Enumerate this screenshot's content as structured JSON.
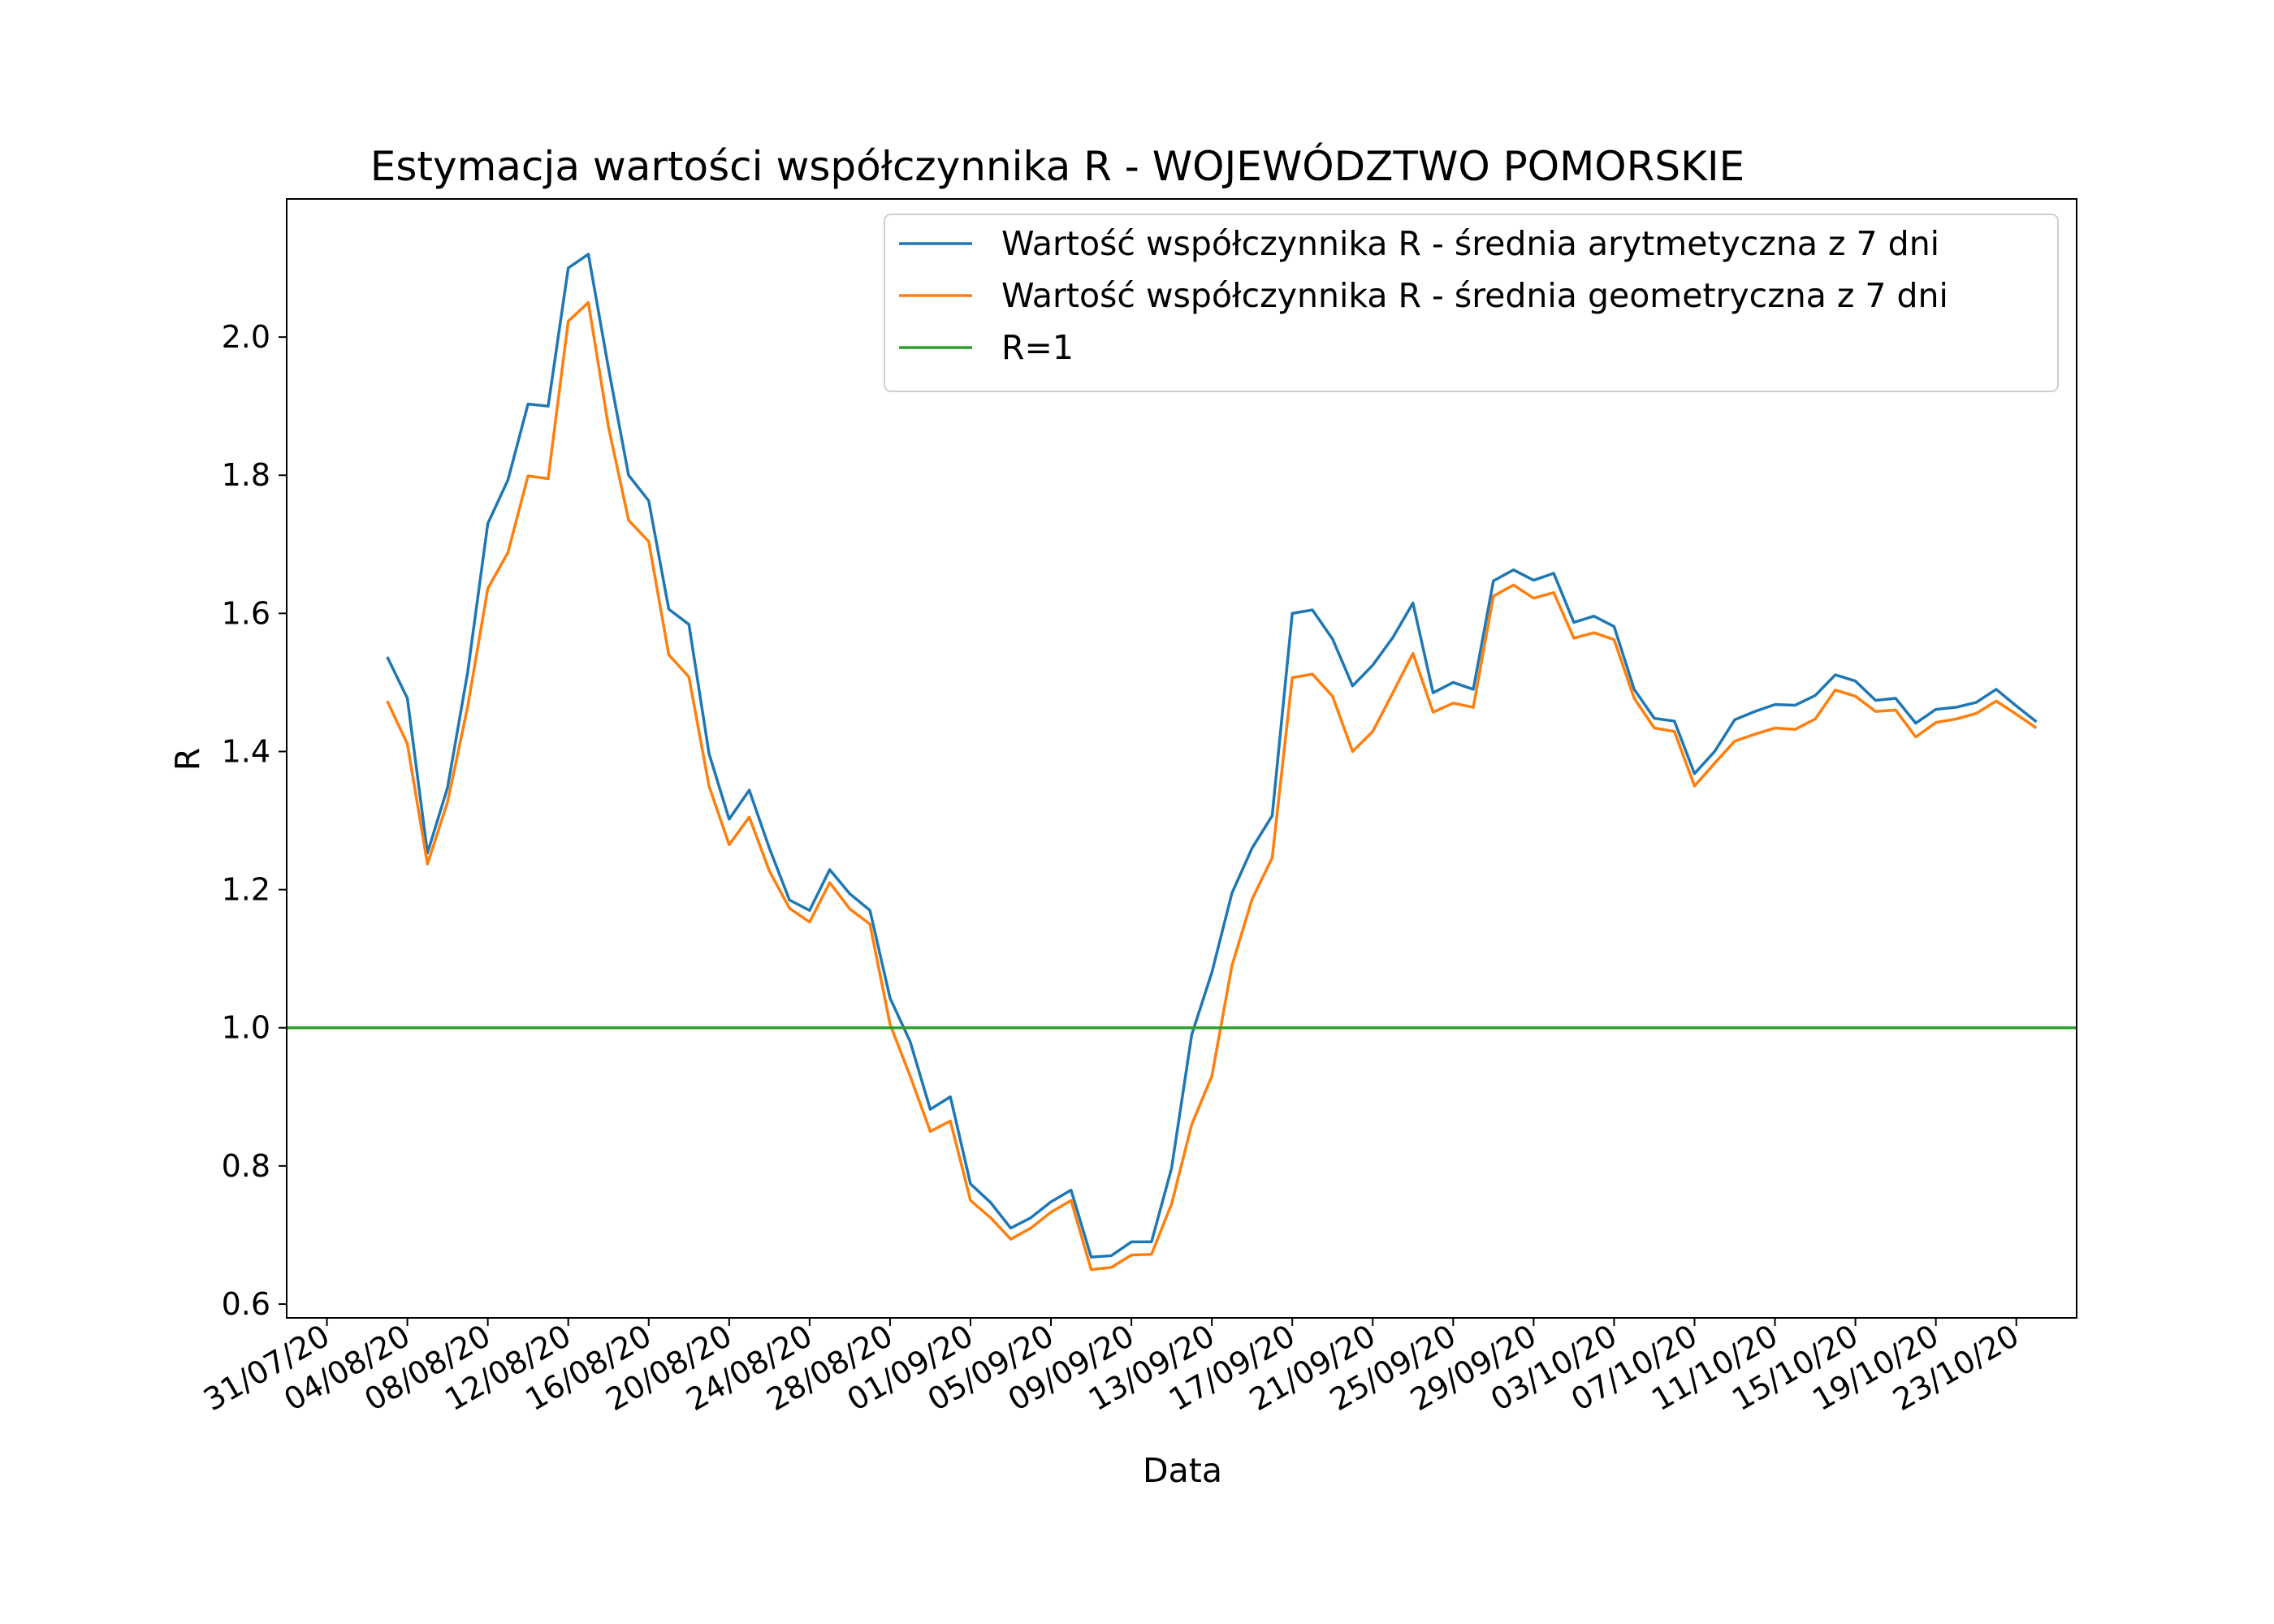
{
  "chart_data": {
    "type": "line",
    "title": "Estymacja wartości współczynnika R - WOJEWÓDZTWO POMORSKIE",
    "xlabel": "Data",
    "ylabel": "R",
    "x_start": "2020-08-03",
    "xlim": [
      "2020-07-29",
      "2020-10-26"
    ],
    "ylim": [
      0.58,
      2.2
    ],
    "yticks": [
      0.6,
      0.8,
      1.0,
      1.2,
      1.4,
      1.6,
      1.8,
      2.0
    ],
    "xticks": [
      "31/07/20",
      "04/08/20",
      "08/08/20",
      "12/08/20",
      "16/08/20",
      "20/08/20",
      "24/08/20",
      "28/08/20",
      "01/09/20",
      "05/09/20",
      "09/09/20",
      "13/09/20",
      "17/09/20",
      "21/09/20",
      "25/09/20",
      "29/09/20",
      "03/10/20",
      "07/10/20",
      "11/10/20",
      "15/10/20",
      "19/10/20",
      "23/10/20"
    ],
    "xtick_dates": [
      "2020-07-31",
      "2020-08-04",
      "2020-08-08",
      "2020-08-12",
      "2020-08-16",
      "2020-08-20",
      "2020-08-24",
      "2020-08-28",
      "2020-09-01",
      "2020-09-05",
      "2020-09-09",
      "2020-09-13",
      "2020-09-17",
      "2020-09-21",
      "2020-09-25",
      "2020-09-29",
      "2020-10-03",
      "2020-10-07",
      "2020-10-11",
      "2020-10-15",
      "2020-10-19",
      "2020-10-23"
    ],
    "grid": false,
    "legend_position": "top-right",
    "series": [
      {
        "name": "Wartość współczynnika R - średnia arytmetyczna z 7 dni",
        "color": "#1f77b4",
        "values": [
          1.537,
          1.477,
          1.253,
          1.348,
          1.515,
          1.73,
          1.793,
          1.903,
          1.9,
          2.1,
          2.12,
          1.955,
          1.8,
          1.763,
          1.606,
          1.584,
          1.397,
          1.302,
          1.344,
          1.26,
          1.185,
          1.17,
          1.229,
          1.194,
          1.17,
          1.043,
          0.98,
          0.882,
          0.9,
          0.774,
          0.747,
          0.71,
          0.725,
          0.748,
          0.765,
          0.668,
          0.67,
          0.69,
          0.69,
          0.797,
          0.99,
          1.08,
          1.195,
          1.26,
          1.307,
          1.6,
          1.605,
          1.563,
          1.495,
          1.525,
          1.565,
          1.615,
          1.485,
          1.5,
          1.49,
          1.647,
          1.663,
          1.648,
          1.658,
          1.587,
          1.596,
          1.581,
          1.49,
          1.448,
          1.444,
          1.368,
          1.4,
          1.446,
          1.458,
          1.468,
          1.467,
          1.481,
          1.511,
          1.502,
          1.474,
          1.477,
          1.441,
          1.461,
          1.464,
          1.471,
          1.49,
          1.466,
          1.443
        ]
      },
      {
        "name": "Wartość współczynnika R - średnia geometryczna z 7 dni",
        "color": "#ff7f0e",
        "values": [
          1.473,
          1.411,
          1.237,
          1.327,
          1.465,
          1.636,
          1.688,
          1.799,
          1.795,
          2.023,
          2.05,
          1.87,
          1.735,
          1.704,
          1.54,
          1.508,
          1.35,
          1.265,
          1.305,
          1.227,
          1.173,
          1.153,
          1.21,
          1.172,
          1.15,
          1.005,
          0.93,
          0.85,
          0.865,
          0.75,
          0.725,
          0.694,
          0.71,
          0.733,
          0.75,
          0.65,
          0.653,
          0.671,
          0.672,
          0.745,
          0.86,
          0.93,
          1.09,
          1.186,
          1.246,
          1.507,
          1.512,
          1.48,
          1.4,
          1.429,
          1.485,
          1.542,
          1.457,
          1.47,
          1.464,
          1.625,
          1.641,
          1.622,
          1.63,
          1.564,
          1.572,
          1.562,
          1.477,
          1.434,
          1.429,
          1.35,
          1.383,
          1.415,
          1.425,
          1.434,
          1.432,
          1.447,
          1.489,
          1.48,
          1.458,
          1.46,
          1.421,
          1.442,
          1.447,
          1.455,
          1.473,
          1.454,
          1.434
        ]
      },
      {
        "name": "R=1",
        "color": "#2ca02c",
        "values": [
          1.0,
          1.0
        ]
      }
    ]
  }
}
